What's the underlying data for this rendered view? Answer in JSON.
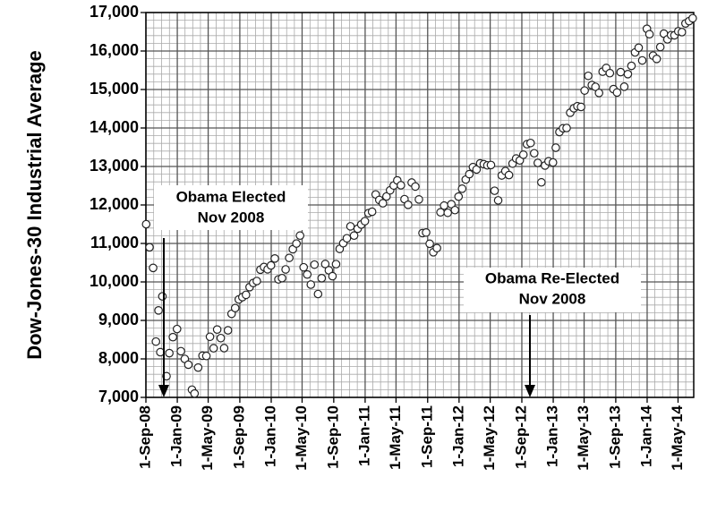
{
  "chart_data": {
    "type": "scatter",
    "y_label": "Dow-Jones-30 Industrial Average",
    "annotations": [
      {
        "lines": [
          "Obama Elected",
          "Nov 2008"
        ]
      },
      {
        "lines": [
          "Obama Re-Elected",
          "Nov 2008"
        ]
      }
    ],
    "xlim": [
      "2008-09-01",
      "2014-07-01"
    ],
    "xticks": [
      {
        "value": "2008-09-01",
        "label": "1-Sep-08"
      },
      {
        "value": "2009-01-01",
        "label": "1-Jan-09"
      },
      {
        "value": "2009-05-01",
        "label": "1-May-09"
      },
      {
        "value": "2009-09-01",
        "label": "1-Sep-09"
      },
      {
        "value": "2010-01-01",
        "label": "1-Jan-10"
      },
      {
        "value": "2010-05-01",
        "label": "1-May-10"
      },
      {
        "value": "2010-09-01",
        "label": "1-Sep-10"
      },
      {
        "value": "2011-01-01",
        "label": "1-Jan-11"
      },
      {
        "value": "2011-05-01",
        "label": "1-May-11"
      },
      {
        "value": "2011-09-01",
        "label": "1-Sep-11"
      },
      {
        "value": "2012-01-01",
        "label": "1-Jan-12"
      },
      {
        "value": "2012-05-01",
        "label": "1-May-12"
      },
      {
        "value": "2012-09-01",
        "label": "1-Sep-12"
      },
      {
        "value": "2013-01-01",
        "label": "1-Jan-13"
      },
      {
        "value": "2013-05-01",
        "label": "1-May-13"
      },
      {
        "value": "2013-09-01",
        "label": "1-Sep-13"
      },
      {
        "value": "2014-01-01",
        "label": "1-Jan-14"
      },
      {
        "value": "2014-05-01",
        "label": "1-May-14"
      }
    ],
    "ylim": [
      7000,
      17000
    ],
    "yticks": [
      {
        "value": 7000,
        "label": "7,000"
      },
      {
        "value": 8000,
        "label": "8,000"
      },
      {
        "value": 9000,
        "label": "9,000"
      },
      {
        "value": 10000,
        "label": "10,000"
      },
      {
        "value": 11000,
        "label": "11,000"
      },
      {
        "value": 12000,
        "label": "12,000"
      },
      {
        "value": 13000,
        "label": "13,000"
      },
      {
        "value": 14000,
        "label": "14,000"
      },
      {
        "value": 15000,
        "label": "15,000"
      },
      {
        "value": 16000,
        "label": "16,000"
      },
      {
        "value": 17000,
        "label": "17,000"
      }
    ],
    "grid": true,
    "minor_grid": true,
    "marker_fill": "#ffffff",
    "marker_stroke": "#222222",
    "x": [
      "2008-09-02",
      "2008-09-15",
      "2008-09-29",
      "2008-10-10",
      "2008-10-20",
      "2008-10-27",
      "2008-11-04",
      "2008-11-20",
      "2008-12-01",
      "2008-12-15",
      "2008-12-31",
      "2009-01-15",
      "2009-01-30",
      "2009-02-13",
      "2009-02-27",
      "2009-03-09",
      "2009-03-23",
      "2009-04-09",
      "2009-04-24",
      "2009-05-08",
      "2009-05-22",
      "2009-06-05",
      "2009-06-19",
      "2009-07-02",
      "2009-07-17",
      "2009-07-31",
      "2009-08-14",
      "2009-08-28",
      "2009-09-11",
      "2009-09-25",
      "2009-10-09",
      "2009-10-23",
      "2009-11-06",
      "2009-11-20",
      "2009-12-04",
      "2009-12-18",
      "2009-12-31",
      "2010-01-15",
      "2010-01-29",
      "2010-02-12",
      "2010-02-26",
      "2010-03-12",
      "2010-03-26",
      "2010-04-09",
      "2010-04-23",
      "2010-05-07",
      "2010-05-21",
      "2010-06-04",
      "2010-06-18",
      "2010-07-02",
      "2010-07-16",
      "2010-07-30",
      "2010-08-13",
      "2010-08-27",
      "2010-09-10",
      "2010-09-24",
      "2010-10-08",
      "2010-10-22",
      "2010-11-05",
      "2010-11-19",
      "2010-12-03",
      "2010-12-17",
      "2010-12-31",
      "2011-01-14",
      "2011-01-28",
      "2011-02-11",
      "2011-02-25",
      "2011-03-11",
      "2011-03-25",
      "2011-04-08",
      "2011-04-22",
      "2011-05-06",
      "2011-05-20",
      "2011-06-03",
      "2011-06-17",
      "2011-07-01",
      "2011-07-15",
      "2011-07-29",
      "2011-08-12",
      "2011-08-26",
      "2011-09-09",
      "2011-09-23",
      "2011-10-07",
      "2011-10-21",
      "2011-11-04",
      "2011-11-18",
      "2011-12-02",
      "2011-12-16",
      "2011-12-30",
      "2012-01-13",
      "2012-01-27",
      "2012-02-10",
      "2012-02-24",
      "2012-03-09",
      "2012-03-23",
      "2012-04-06",
      "2012-04-20",
      "2012-05-04",
      "2012-05-18",
      "2012-06-01",
      "2012-06-15",
      "2012-06-29",
      "2012-07-13",
      "2012-07-27",
      "2012-08-10",
      "2012-08-24",
      "2012-09-07",
      "2012-09-21",
      "2012-10-05",
      "2012-10-19",
      "2012-11-02",
      "2012-11-16",
      "2012-11-30",
      "2012-12-14",
      "2012-12-31",
      "2013-01-11",
      "2013-01-25",
      "2013-02-08",
      "2013-02-22",
      "2013-03-08",
      "2013-03-22",
      "2013-04-05",
      "2013-04-19",
      "2013-05-03",
      "2013-05-17",
      "2013-05-31",
      "2013-06-14",
      "2013-06-28",
      "2013-07-12",
      "2013-07-26",
      "2013-08-09",
      "2013-08-23",
      "2013-09-06",
      "2013-09-20",
      "2013-10-04",
      "2013-10-18",
      "2013-11-01",
      "2013-11-15",
      "2013-11-29",
      "2013-12-13",
      "2013-12-31",
      "2014-01-10",
      "2014-01-24",
      "2014-02-07",
      "2014-02-21",
      "2014-03-07",
      "2014-03-21",
      "2014-04-04",
      "2014-04-17",
      "2014-05-02",
      "2014-05-16",
      "2014-05-30",
      "2014-06-13",
      "2014-06-27"
    ],
    "values": [
      11500,
      10900,
      10365,
      8450,
      9260,
      8175,
      9625,
      7550,
      8150,
      8565,
      8776,
      8200,
      8000,
      7850,
      7200,
      7100,
      7775,
      8083,
      8076,
      8575,
      8277,
      8763,
      8540,
      8280,
      8743,
      9171,
      9321,
      9544,
      9605,
      9665,
      9865,
      9972,
      10023,
      10318,
      10388,
      10328,
      10428,
      10609,
      10067,
      10099,
      10325,
      10624,
      10850,
      10997,
      11204,
      10380,
      10193,
      9931,
      10450,
      9686,
      10097,
      10466,
      10303,
      10150,
      10462,
      10860,
      11006,
      11133,
      11444,
      11204,
      11382,
      11491,
      11578,
      11787,
      11824,
      12273,
      12130,
      12044,
      12221,
      12380,
      12505,
      12638,
      12512,
      12151,
      12004,
      12582,
      12479,
      12143,
      11269,
      11284,
      10992,
      10771,
      10879,
      11809,
      11983,
      11796,
      12019,
      11866,
      12217,
      12422,
      12660,
      12801,
      12983,
      12922,
      13080,
      13060,
      13029,
      13038,
      12369,
      12119,
      12767,
      12880,
      12777,
      13075,
      13207,
      13157,
      13306,
      13579,
      13610,
      13343,
      13093,
      12588,
      13025,
      13135,
      13104,
      13488,
      13895,
      13992,
      14000,
      14397,
      14512,
      14565,
      14547,
      14973,
      15354,
      15115,
      15070,
      14910,
      15464,
      15559,
      15425,
      15010,
      14922,
      15452,
      15073,
      15400,
      15615,
      15962,
      16086,
      15755,
      16577,
      16437,
      15880,
      15795,
      16104,
      16452,
      16303,
      16413,
      16409,
      16513,
      16491,
      16717,
      16776,
      16851
    ]
  }
}
